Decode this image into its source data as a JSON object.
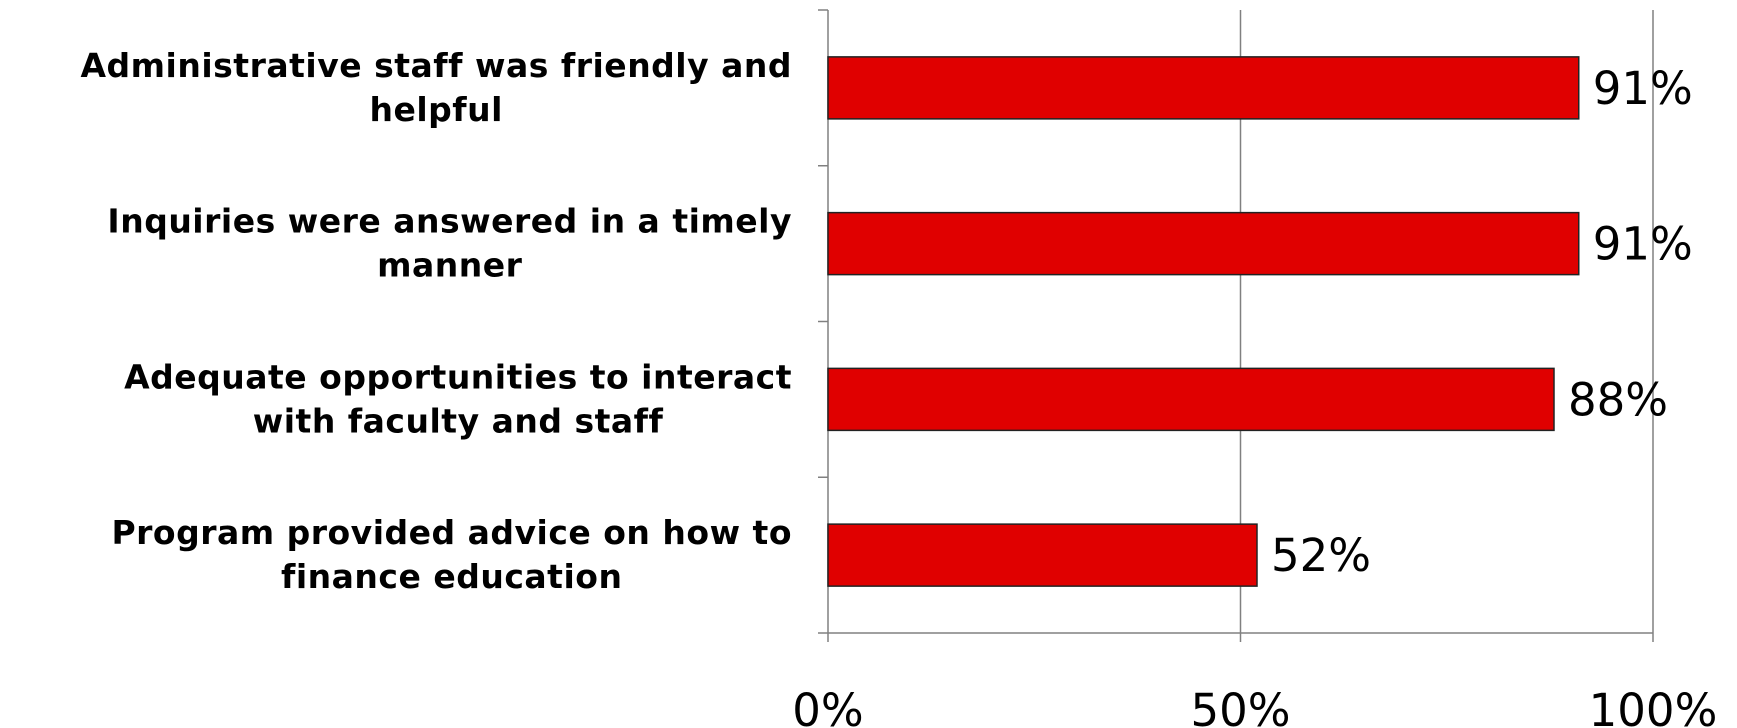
{
  "chart_data": {
    "type": "bar",
    "orientation": "horizontal",
    "title": "",
    "xlabel": "",
    "ylabel": "",
    "categories": [
      [
        "Administrative staff was friendly and",
        "helpful"
      ],
      [
        "Inquiries were answered in a timely",
        "manner"
      ],
      [
        "Adequate opportunities to interact",
        "with faculty and staff"
      ],
      [
        "Program provided advice on how to",
        "finance education"
      ]
    ],
    "values": [
      91,
      91,
      88,
      52
    ],
    "value_labels": [
      "91%",
      "91%",
      "88%",
      "52%"
    ],
    "xlim": [
      0,
      100
    ],
    "x_ticks": [
      0,
      50,
      100
    ],
    "x_tick_labels": [
      "0%",
      "50%",
      "100%"
    ],
    "grid": "vertical",
    "legend": "none",
    "colors": {
      "bar_fill": "#e00000",
      "bar_stroke": "#222222",
      "axis": "#808080",
      "grid": "#808080"
    }
  }
}
